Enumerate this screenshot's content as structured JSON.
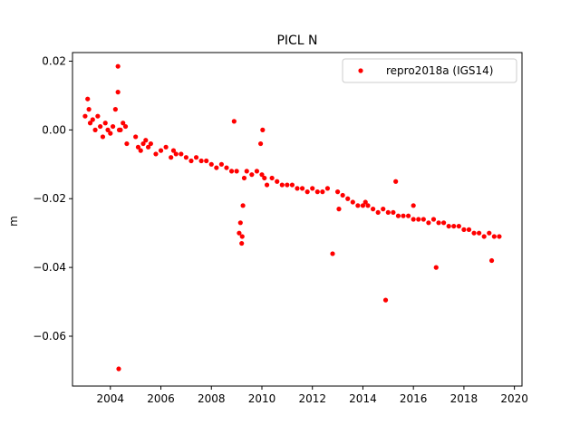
{
  "chart_data": {
    "type": "scatter",
    "title": "PICL N",
    "xlabel": "",
    "ylabel": "m",
    "xlim": [
      2002.5,
      2020.3
    ],
    "ylim": [
      -0.0745,
      0.0225
    ],
    "x_ticks": [
      2004,
      2006,
      2008,
      2010,
      2012,
      2014,
      2016,
      2018,
      2020
    ],
    "x_tick_labels": [
      "2004",
      "2006",
      "2008",
      "2010",
      "2012",
      "2014",
      "2016",
      "2018",
      "2020"
    ],
    "y_ticks": [
      0.02,
      0.0,
      -0.02,
      -0.04,
      -0.06
    ],
    "y_tick_labels": [
      "0.02",
      "0.00",
      "−0.02",
      "−0.04",
      "−0.06"
    ],
    "grid": false,
    "legend": {
      "placement": "top-right"
    },
    "series": [
      {
        "name": "repro2018a (IGS14)",
        "color": "#ff0000",
        "marker": "circle",
        "x": [
          2003.0,
          2003.1,
          2003.15,
          2003.2,
          2003.3,
          2003.4,
          2003.5,
          2003.6,
          2003.7,
          2003.8,
          2003.9,
          2004.0,
          2004.1,
          2004.2,
          2004.3,
          2004.4,
          2004.5,
          2004.6,
          2004.65,
          2004.3,
          2004.33,
          2004.35,
          2005.0,
          2005.1,
          2005.2,
          2005.3,
          2005.4,
          2005.5,
          2005.6,
          2005.8,
          2006.0,
          2006.2,
          2006.4,
          2006.5,
          2006.6,
          2006.8,
          2007.0,
          2007.2,
          2007.4,
          2007.6,
          2007.8,
          2008.0,
          2008.2,
          2008.4,
          2008.6,
          2008.8,
          2009.0,
          2009.1,
          2009.2,
          2009.25,
          2009.3,
          2009.4,
          2009.6,
          2009.8,
          2010.0,
          2010.1,
          2010.2,
          2010.4,
          2010.6,
          2010.8,
          2011.0,
          2011.2,
          2011.4,
          2011.6,
          2011.8,
          2012.0,
          2012.2,
          2012.4,
          2012.6,
          2012.8,
          2013.0,
          2013.2,
          2013.4,
          2013.6,
          2013.8,
          2014.0,
          2014.1,
          2014.2,
          2014.4,
          2014.6,
          2014.8,
          2014.9,
          2015.0,
          2015.2,
          2015.4,
          2015.6,
          2015.8,
          2016.0,
          2016.2,
          2016.4,
          2016.6,
          2016.8,
          2017.0,
          2017.2,
          2017.4,
          2017.6,
          2017.8,
          2018.0,
          2018.2,
          2018.4,
          2018.6,
          2018.8,
          2019.0,
          2019.2,
          2019.4,
          2008.9,
          2009.15,
          2009.22,
          2009.95,
          2010.03,
          2013.05,
          2015.3,
          2016.0,
          2016.9,
          2019.1
        ],
        "y": [
          0.004,
          0.009,
          0.006,
          0.002,
          0.003,
          0.0,
          0.004,
          0.001,
          -0.002,
          0.002,
          0.0,
          -0.001,
          0.001,
          0.006,
          0.011,
          0.0,
          0.002,
          0.001,
          -0.004,
          0.0185,
          -0.0695,
          0.0,
          -0.002,
          -0.005,
          -0.006,
          -0.004,
          -0.003,
          -0.005,
          -0.004,
          -0.007,
          -0.006,
          -0.005,
          -0.008,
          -0.006,
          -0.007,
          -0.007,
          -0.008,
          -0.009,
          -0.008,
          -0.009,
          -0.009,
          -0.01,
          -0.011,
          -0.01,
          -0.011,
          -0.012,
          -0.012,
          -0.03,
          -0.033,
          -0.022,
          -0.014,
          -0.012,
          -0.013,
          -0.012,
          -0.013,
          -0.014,
          -0.016,
          -0.014,
          -0.015,
          -0.016,
          -0.016,
          -0.016,
          -0.017,
          -0.017,
          -0.018,
          -0.017,
          -0.018,
          -0.018,
          -0.017,
          -0.036,
          -0.018,
          -0.019,
          -0.02,
          -0.021,
          -0.022,
          -0.022,
          -0.021,
          -0.022,
          -0.023,
          -0.024,
          -0.023,
          -0.0495,
          -0.024,
          -0.024,
          -0.025,
          -0.025,
          -0.025,
          -0.026,
          -0.026,
          -0.026,
          -0.027,
          -0.026,
          -0.027,
          -0.027,
          -0.028,
          -0.028,
          -0.028,
          -0.029,
          -0.029,
          -0.03,
          -0.03,
          -0.031,
          -0.03,
          -0.031,
          -0.031,
          0.0025,
          -0.027,
          -0.031,
          -0.004,
          0.0,
          -0.023,
          -0.015,
          -0.022,
          -0.04,
          -0.038
        ]
      }
    ]
  }
}
